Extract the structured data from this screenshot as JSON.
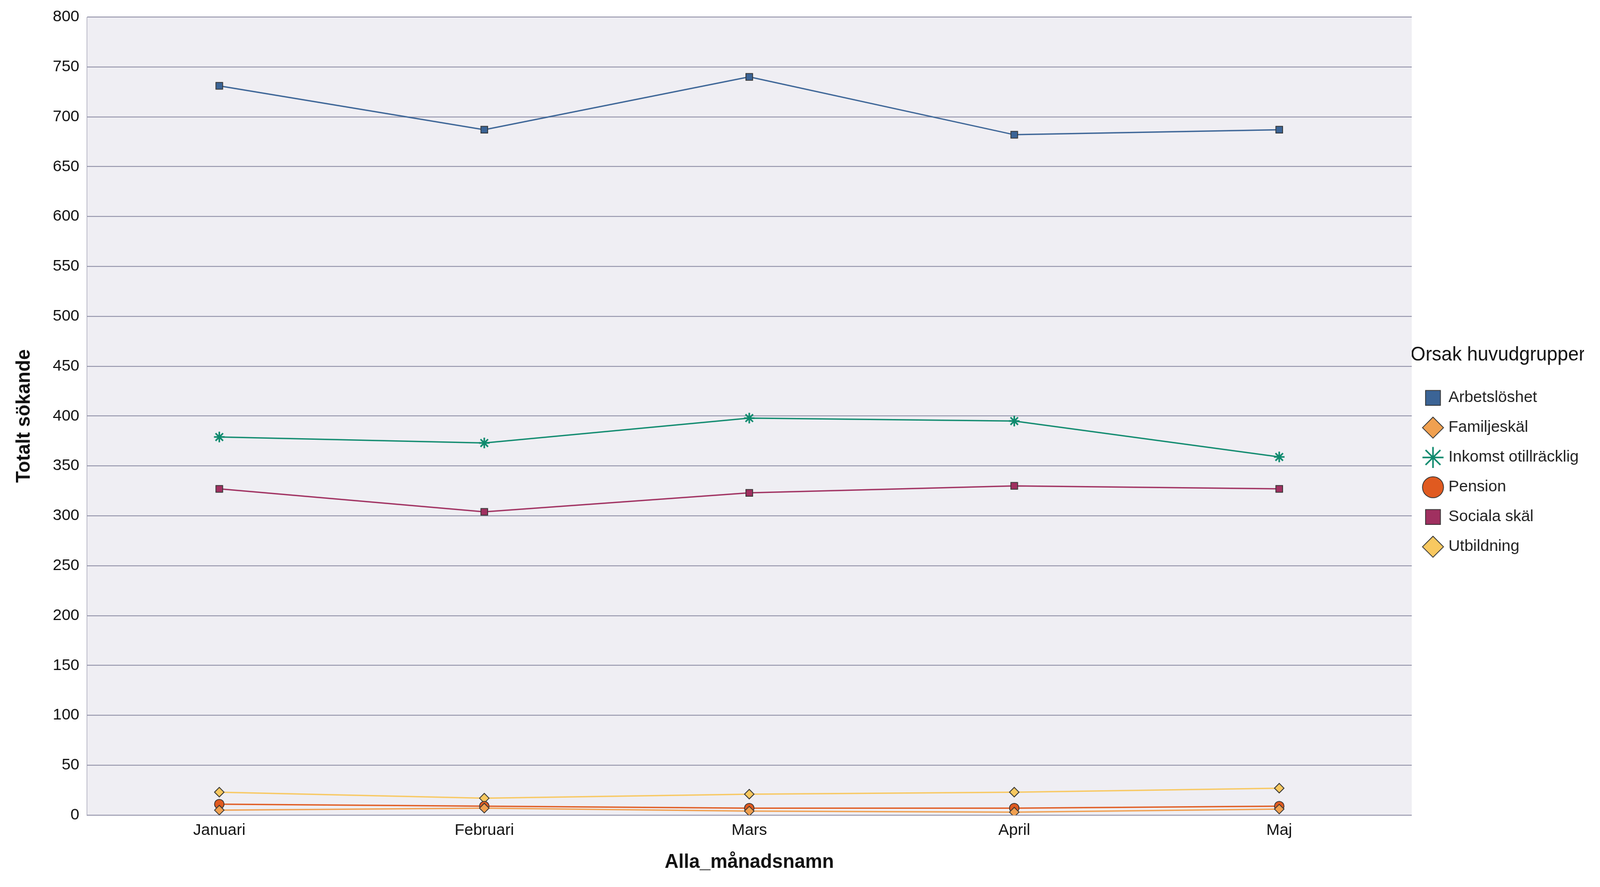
{
  "chart_data": {
    "type": "line",
    "x_label": "Alla_månadsnamn",
    "y_label": "Totalt sökande",
    "legend_title": "Orsak huvudgrupper",
    "legend": "right",
    "grid": true,
    "categories": [
      "Januari",
      "Februari",
      "Mars",
      "April",
      "Maj"
    ],
    "ylim": [
      0,
      800
    ],
    "yticks": [
      0,
      50,
      100,
      150,
      200,
      250,
      300,
      350,
      400,
      450,
      500,
      550,
      600,
      650,
      700,
      750,
      800
    ],
    "series": [
      {
        "name": "Arbetslöshet",
        "color": "#3b6496",
        "marker": "square",
        "values": [
          731,
          687,
          740,
          682,
          687
        ]
      },
      {
        "name": "Familjeskäl",
        "color": "#f0a050",
        "marker": "diamond",
        "values": [
          5,
          7,
          4,
          3,
          6
        ]
      },
      {
        "name": "Inkomst otillräcklig",
        "color": "#0f8a6e",
        "marker": "star",
        "values": [
          379,
          373,
          398,
          395,
          359
        ]
      },
      {
        "name": "Pension",
        "color": "#e05a20",
        "marker": "circle",
        "values": [
          11,
          9,
          7,
          7,
          9
        ]
      },
      {
        "name": "Sociala skäl",
        "color": "#a03060",
        "marker": "square",
        "values": [
          327,
          304,
          323,
          330,
          327
        ]
      },
      {
        "name": "Utbildning",
        "color": "#f8c860",
        "marker": "diamond",
        "values": [
          23,
          17,
          21,
          23,
          27
        ]
      }
    ]
  }
}
